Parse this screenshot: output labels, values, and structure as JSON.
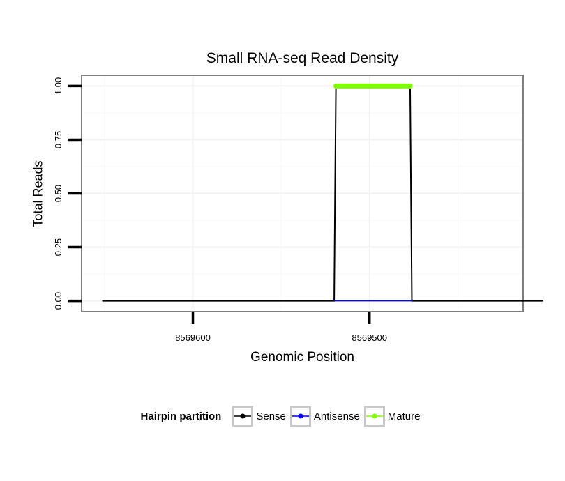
{
  "chart_data": {
    "type": "line",
    "title": "Small RNA-seq Read Density",
    "xlabel": "Genomic Position",
    "ylabel": "Total Reads",
    "x_reversed": true,
    "xlim": [
      8569663,
      8569413
    ],
    "ylim": [
      -0.05,
      1.05
    ],
    "x_ticks": [
      8569600,
      8569500
    ],
    "x_tick_labels": [
      "8569600",
      "8569500"
    ],
    "y_ticks": [
      0,
      0.25,
      0.5,
      0.75,
      1.0
    ],
    "y_tick_labels": [
      "0.00",
      "0.25",
      "0.50",
      "0.75",
      "1.00"
    ],
    "series": [
      {
        "name": "Sense",
        "color": "#000000",
        "x": [
          8569651,
          8569520,
          8569519,
          8569477,
          8569476,
          8569402
        ],
        "y": [
          0,
          0,
          1,
          1,
          0,
          0
        ]
      },
      {
        "name": "Antisense",
        "color": "#0000ff",
        "x": [
          8569520,
          8569476
        ],
        "y": [
          0,
          0
        ]
      },
      {
        "name": "Mature",
        "color": "#7fff00",
        "x": [
          8569519,
          8569477
        ],
        "y": [
          1,
          1
        ]
      }
    ],
    "legend": {
      "title": "Hairpin partition",
      "position": "bottom",
      "entries": [
        "Sense",
        "Antisense",
        "Mature"
      ]
    }
  }
}
